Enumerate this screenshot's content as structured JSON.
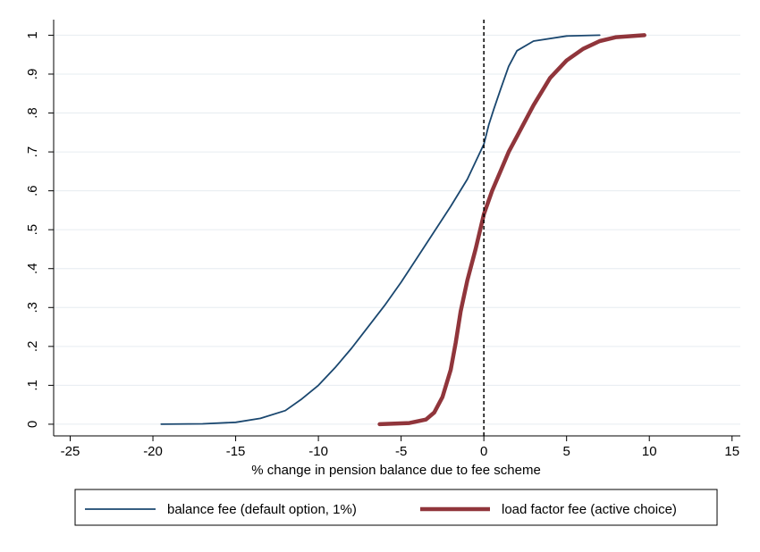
{
  "chart_data": {
    "type": "line",
    "xlabel": "% change in pension balance due to fee scheme",
    "ylabel": "",
    "xlim": [
      -26,
      15.5
    ],
    "ylim": [
      -0.03,
      1.04
    ],
    "x_ticks": [
      -25,
      -20,
      -15,
      -10,
      -5,
      0,
      5,
      10,
      15
    ],
    "x_tick_labels": [
      "-25",
      "-20",
      "-15",
      "-10",
      "-5",
      "0",
      "5",
      "10",
      "15"
    ],
    "y_ticks": [
      0,
      0.1,
      0.2,
      0.3,
      0.4,
      0.5,
      0.6,
      0.7,
      0.8,
      0.9,
      1.0
    ],
    "y_tick_labels": [
      "0",
      ".1",
      ".2",
      ".3",
      ".4",
      ".5",
      ".6",
      ".7",
      ".8",
      ".9",
      "1"
    ],
    "grid": "horizontal",
    "reference_line": {
      "x": 0,
      "style": "dashed"
    },
    "legend_position": "bottom",
    "series": [
      {
        "name": "balance fee (default option, 1%)",
        "color": "#1a476f",
        "style": "thin",
        "x": [
          -19.5,
          -17,
          -15,
          -13.5,
          -12,
          -11,
          -10,
          -9,
          -8,
          -7,
          -6,
          -5,
          -4,
          -3,
          -2,
          -1,
          0,
          0.3,
          0.6,
          1,
          1.5,
          2,
          3,
          5,
          7
        ],
        "y": [
          0.0,
          0.001,
          0.005,
          0.015,
          0.035,
          0.065,
          0.1,
          0.145,
          0.195,
          0.25,
          0.305,
          0.365,
          0.43,
          0.495,
          0.56,
          0.63,
          0.72,
          0.77,
          0.81,
          0.86,
          0.92,
          0.96,
          0.985,
          0.998,
          1.0
        ]
      },
      {
        "name": "load factor fee (active choice)",
        "color": "#90353b",
        "style": "thick",
        "x": [
          -6.3,
          -4.5,
          -3.5,
          -3,
          -2.5,
          -2,
          -1.7,
          -1.4,
          -1,
          -0.5,
          0,
          0.5,
          1,
          1.5,
          2,
          3,
          4,
          5,
          6,
          7,
          8,
          9.7
        ],
        "y": [
          0.0,
          0.003,
          0.012,
          0.03,
          0.07,
          0.14,
          0.21,
          0.29,
          0.37,
          0.45,
          0.54,
          0.6,
          0.65,
          0.7,
          0.74,
          0.82,
          0.89,
          0.935,
          0.965,
          0.985,
          0.995,
          1.0
        ]
      }
    ]
  }
}
